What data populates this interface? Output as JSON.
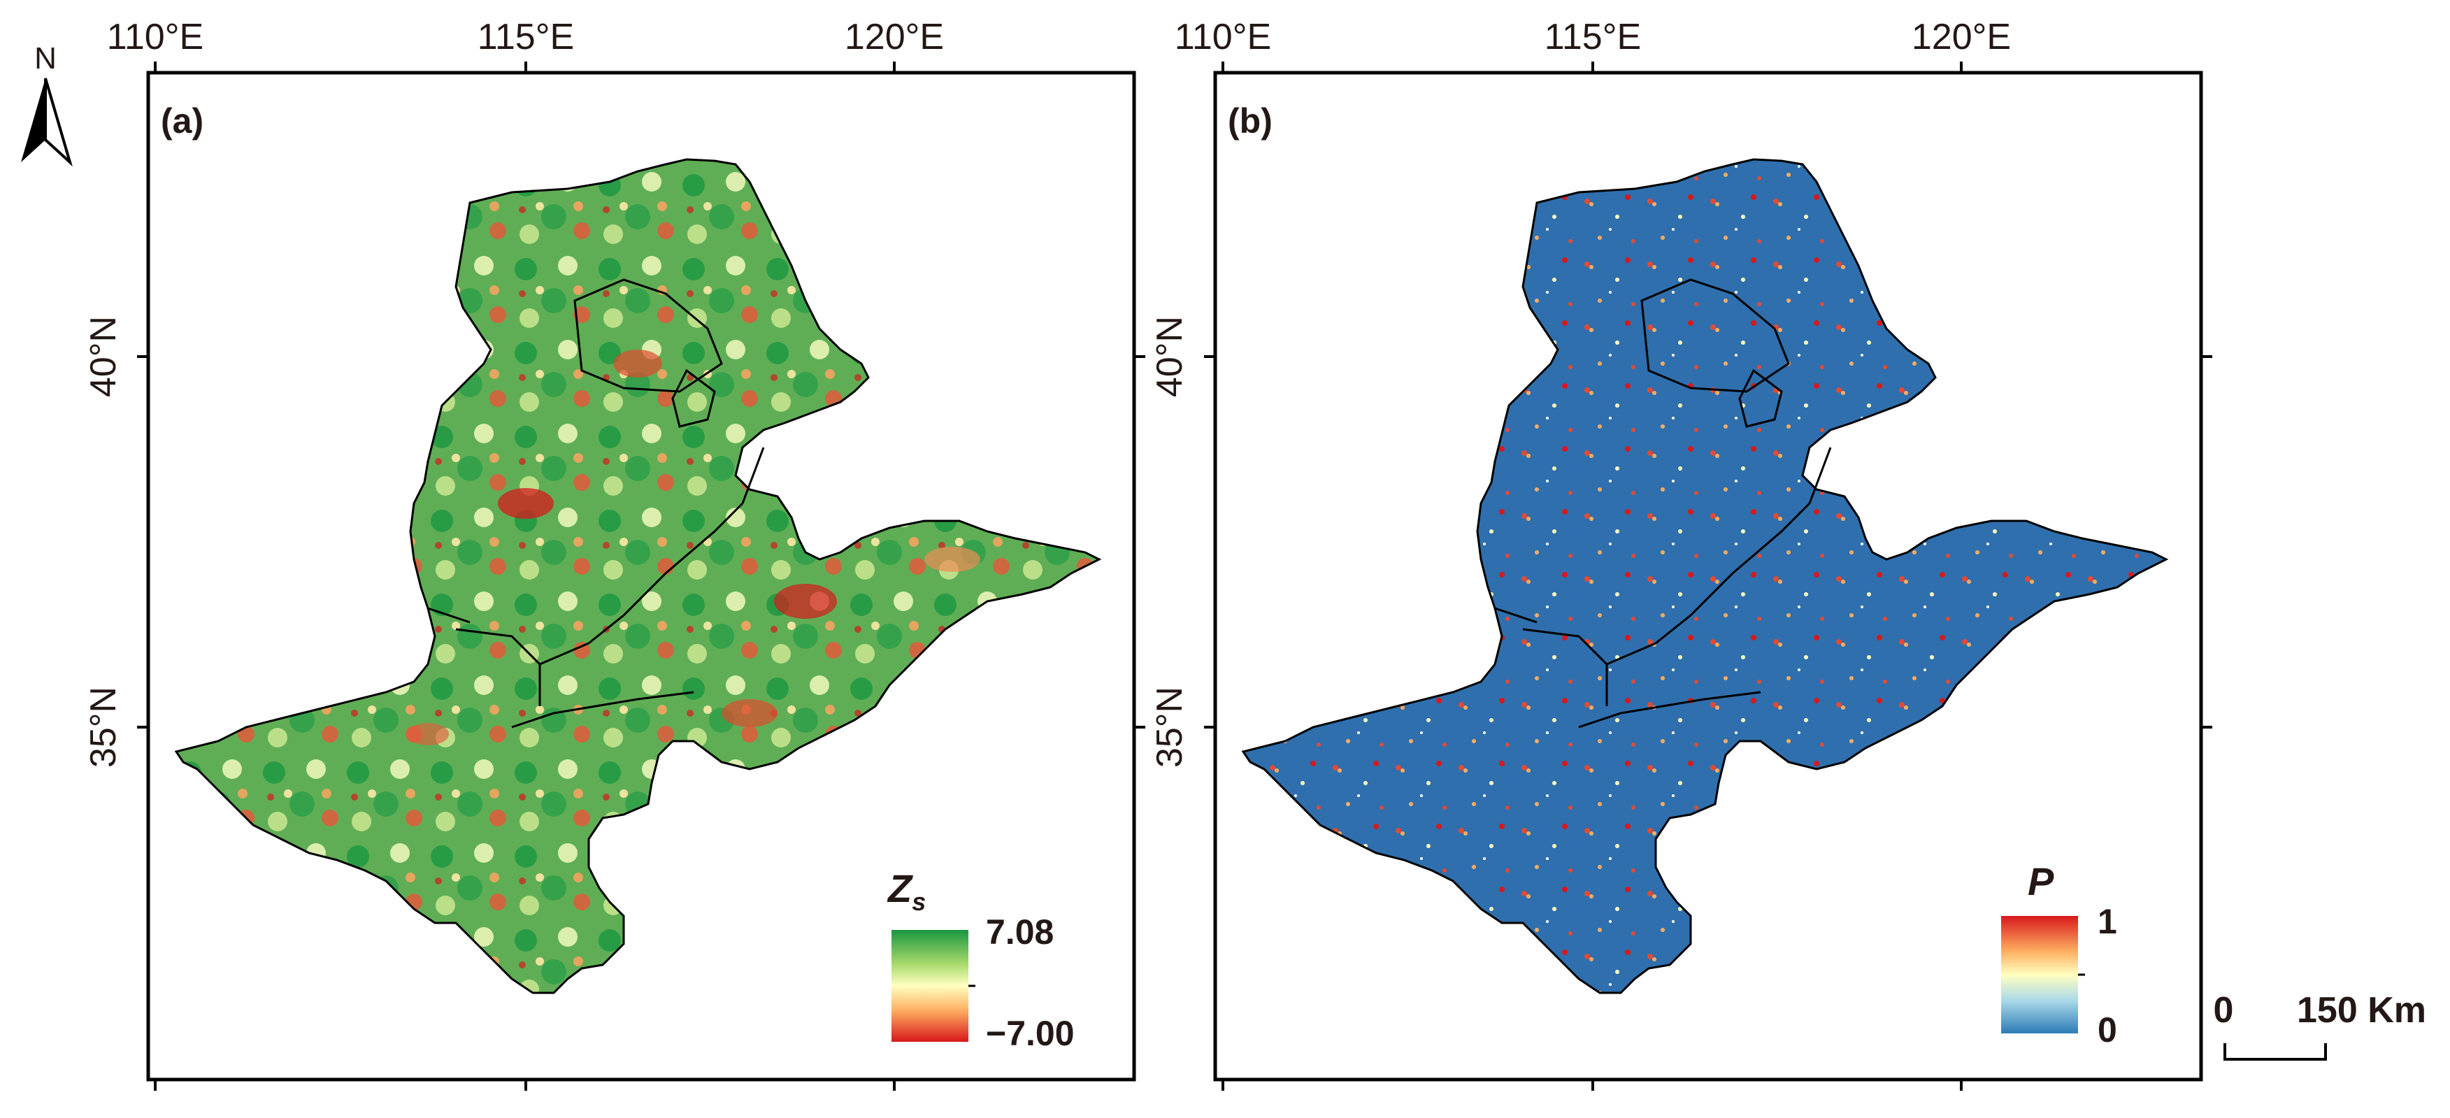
{
  "north_arrow": {
    "label": "N"
  },
  "coords": {
    "lon_labels": [
      "110°E",
      "115°E",
      "120°E"
    ],
    "lat_labels": [
      "40°N",
      "35°N"
    ]
  },
  "panels": [
    {
      "id": "a",
      "label": "(a)",
      "legend": {
        "title": "Z",
        "subscript": "s",
        "max": "7.08",
        "min": "−7.00",
        "colors": [
          "#1a9641",
          "#a6d96a",
          "#ffffbf",
          "#fdae61",
          "#d7191c"
        ]
      }
    },
    {
      "id": "b",
      "label": "(b)",
      "legend": {
        "title": "P",
        "max": "1",
        "min": "0",
        "colors": [
          "#d7191c",
          "#fdae61",
          "#ffffbf",
          "#abd9e9",
          "#2c7bb6"
        ]
      }
    }
  ],
  "scale_bar": {
    "zero": "0",
    "distance": "150 Km"
  },
  "colors": {
    "panel_a_base": "#5fae55",
    "panel_b_base": "#2f6fad",
    "border": "#000000"
  }
}
